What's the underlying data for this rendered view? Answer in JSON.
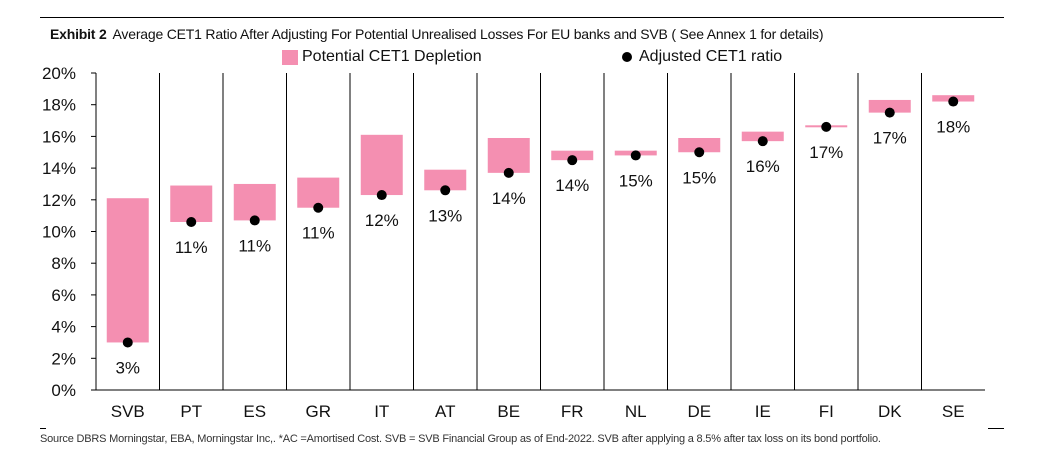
{
  "header": {
    "exhibit": "Exhibit 2",
    "title": "Average CET1 Ratio After Adjusting For Potential Unrealised Losses For EU banks and SVB ( See Annex 1 for details)"
  },
  "legend": {
    "depletion": "Potential CET1 Depletion",
    "adjusted": "Adjusted CET1 ratio"
  },
  "source": "Source DBRS Morningstar, EBA,  Morningstar Inc,. *AC =Amortised Cost. SVB = SVB Financial Group as of End-2022. SVB after applying a 8.5% after tax loss on its bond portfolio.",
  "colors": {
    "depletion": "#f48fb1",
    "adjusted": "#000000"
  },
  "chart_data": {
    "type": "bar",
    "categories": [
      "SVB",
      "PT",
      "ES",
      "GR",
      "IT",
      "AT",
      "BE",
      "FR",
      "NL",
      "DE",
      "IE",
      "FI",
      "DK",
      "SE"
    ],
    "series": [
      {
        "name": "Potential CET1 Depletion",
        "kind": "floating-bar",
        "low": [
          3.0,
          10.6,
          10.7,
          11.5,
          12.3,
          12.6,
          13.7,
          14.5,
          14.8,
          15.0,
          15.7,
          16.6,
          17.5,
          18.2
        ],
        "high": [
          12.1,
          12.9,
          13.0,
          13.4,
          16.1,
          13.9,
          15.9,
          15.1,
          15.1,
          15.9,
          16.3,
          16.7,
          18.3,
          18.6
        ]
      },
      {
        "name": "Adjusted CET1 ratio",
        "kind": "dot",
        "values": [
          3.0,
          10.6,
          10.7,
          11.5,
          12.3,
          12.6,
          13.7,
          14.5,
          14.8,
          15.0,
          15.7,
          16.6,
          17.5,
          18.2
        ]
      }
    ],
    "data_labels": [
      "3%",
      "11%",
      "11%",
      "11%",
      "12%",
      "13%",
      "14%",
      "14%",
      "15%",
      "15%",
      "16%",
      "17%",
      "17%",
      "18%"
    ],
    "y_ticks": [
      "0%",
      "2%",
      "4%",
      "6%",
      "8%",
      "10%",
      "12%",
      "14%",
      "16%",
      "18%",
      "20%"
    ],
    "ylim": [
      0,
      20
    ],
    "grid": "vertical separators between categories",
    "legend_position": "top"
  }
}
